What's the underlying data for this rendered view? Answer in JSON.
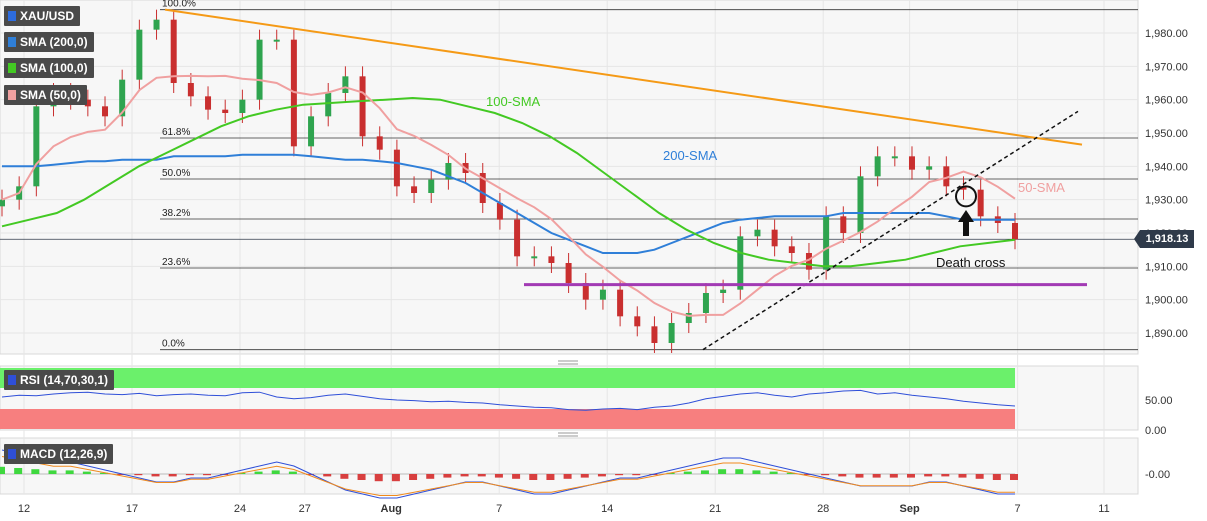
{
  "symbol": "XAU/USD",
  "indicators": {
    "sma200": "SMA (200,0)",
    "sma100": "SMA (100,0)",
    "sma50": "SMA (50,0)",
    "rsi": "RSI (14,70,30,1)",
    "macd": "MACD (12,26,9)"
  },
  "colors": {
    "sma200": "#2f7fd8",
    "sma100": "#43c923",
    "sma50": "#f0a0a0",
    "trend": "#f59a16",
    "support": "#a23ab4",
    "candle": "#c92f2f",
    "rsi_line": "#2f4fd8",
    "rsi_overbought": "#6bf06b",
    "rsi_oversold": "#f77f7f"
  },
  "last_price": "1,918.13",
  "chart_data": {
    "type": "candlestick",
    "y_axis": {
      "min": 1885,
      "max": 1988,
      "ticks": [
        1890,
        1900,
        1910,
        1920,
        1930,
        1940,
        1950,
        1960,
        1970,
        1980
      ],
      "tick_labels": [
        "1,890.00",
        "1,900.00",
        "1,910.00",
        "1,920.00",
        "1,930.00",
        "1,940.00",
        "1,950.00",
        "1,960.00",
        "1,970.00",
        "1,980.00"
      ]
    },
    "x_axis": {
      "labels": [
        "12",
        "17",
        "24",
        "27",
        "Aug",
        "7",
        "14",
        "21",
        "28",
        "Sep",
        "7",
        "11"
      ],
      "date_index": [
        0,
        5,
        10,
        13,
        17,
        22,
        27,
        32,
        37,
        41,
        46,
        50
      ]
    },
    "fibonacci": [
      {
        "label": "100.0%",
        "price": 1987
      },
      {
        "label": "61.8%",
        "price": 1948.5
      },
      {
        "label": "50.0%",
        "price": 1936.2
      },
      {
        "label": "38.2%",
        "price": 1924.2
      },
      {
        "label": "23.6%",
        "price": 1909.5
      },
      {
        "label": "0.0%",
        "price": 1885
      }
    ],
    "annotations": {
      "sma100_label": "100-SMA",
      "sma200_label": "200-SMA",
      "sma50_label": "50-SMA",
      "death_cross": "Death cross"
    },
    "closes": [
      1930,
      1934,
      1958,
      1962,
      1960,
      1958,
      1955,
      1966,
      1981,
      1984,
      1965,
      1961,
      1957,
      1956,
      1960,
      1978,
      1978,
      1946,
      1955,
      1962,
      1967,
      1949,
      1945,
      1934,
      1932,
      1936,
      1941,
      1938,
      1929,
      1924,
      1913,
      1913,
      1911,
      1905,
      1900,
      1903,
      1895,
      1892,
      1887,
      1893,
      1896,
      1902,
      1903,
      1919,
      1921,
      1916,
      1914,
      1909,
      1925,
      1920,
      1937,
      1943,
      1943,
      1939,
      1940,
      1934,
      1933,
      1925,
      1923,
      1918.13
    ],
    "sma200": [
      1940,
      1940,
      1940,
      1940.5,
      1941,
      1941.5,
      1941.5,
      1942,
      1942,
      1942,
      1943,
      1943,
      1943,
      1943,
      1943.5,
      1943.5,
      1943.5,
      1943.5,
      1943,
      1942.5,
      1942,
      1942,
      1941.5,
      1941,
      1940,
      1939,
      1937,
      1935,
      1932,
      1929,
      1926,
      1923,
      1920,
      1918,
      1916,
      1914,
      1914,
      1914,
      1915,
      1917,
      1919,
      1921,
      1923,
      1924,
      1924.5,
      1925,
      1925,
      1925,
      1925,
      1926,
      1926,
      1926,
      1926,
      1926,
      1926,
      1925,
      1924,
      1924,
      1924,
      1924
    ],
    "sma100": [
      1922,
      1924,
      1926,
      1930,
      1935,
      1940,
      1944,
      1948,
      1952,
      1955,
      1957,
      1958.5,
      1959,
      1959.5,
      1960,
      1960.5,
      1960,
      1958,
      1956,
      1953,
      1949,
      1944,
      1938,
      1932,
      1926,
      1921,
      1917,
      1914,
      1912,
      1911,
      1910,
      1910,
      1911,
      1912,
      1914,
      1916,
      1917,
      1918
    ]
  },
  "rsi": {
    "tick_labels": [
      "50.00",
      "0.00"
    ],
    "values": [
      55,
      58,
      57,
      60,
      62,
      63,
      60,
      59,
      61,
      57,
      59,
      60,
      58,
      57,
      62,
      63,
      55,
      52,
      54,
      58,
      60,
      56,
      52,
      50,
      49,
      47,
      48,
      46,
      45,
      42,
      40,
      38,
      37,
      34,
      33,
      35,
      36,
      34,
      38,
      40,
      45,
      52,
      56,
      60,
      62,
      58,
      55,
      60,
      62,
      65,
      66,
      60,
      62,
      58,
      55,
      52,
      48,
      45,
      42,
      40
    ]
  },
  "macd": {
    "tick_labels": [
      "-0.00"
    ],
    "values": [
      6,
      5,
      4,
      3,
      3,
      2,
      1,
      0,
      -1,
      -2,
      -2,
      -1,
      -1,
      0,
      1,
      2,
      3,
      2,
      0,
      -2,
      -4,
      -5,
      -6,
      -6,
      -5,
      -4,
      -3,
      -2,
      -2,
      -3,
      -4,
      -5,
      -5,
      -4,
      -3,
      -2,
      -1,
      -1,
      0,
      1,
      2,
      3,
      4,
      4,
      3,
      2,
      1,
      0,
      -1,
      -2,
      -3,
      -3,
      -3,
      -3,
      -2,
      -2,
      -3,
      -4,
      -5,
      -5
    ]
  }
}
